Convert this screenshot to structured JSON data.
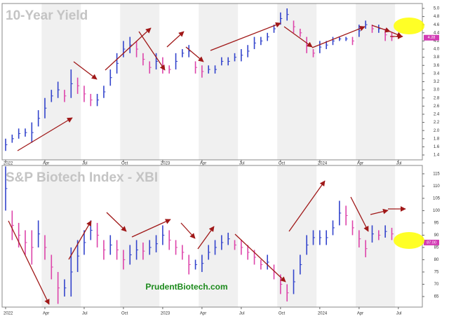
{
  "chart_data": [
    {
      "type": "range-bar",
      "title": "10-Year Yield",
      "categories": [
        "2022",
        null,
        null,
        null,
        null,
        null,
        "Apr",
        null,
        null,
        null,
        null,
        null,
        "Jul",
        null,
        null,
        null,
        null,
        null,
        "Oct",
        null,
        null,
        null,
        null,
        null,
        "2023",
        null,
        null,
        null,
        null,
        null,
        "Apr",
        null,
        null,
        null,
        null,
        null,
        "Jul",
        null,
        null,
        null,
        null,
        null,
        "Oct",
        null,
        null,
        null,
        null,
        null,
        "2024",
        null,
        null,
        null,
        null,
        null,
        "Apr",
        null,
        null,
        null,
        null,
        null,
        "Jul",
        null
      ],
      "high": [
        1.8,
        1.9,
        2.05,
        2.05,
        2.2,
        2.5,
        2.8,
        3.0,
        3.2,
        3.0,
        3.5,
        3.3,
        3.1,
        2.9,
        2.9,
        3.1,
        3.5,
        3.9,
        4.2,
        4.3,
        4.2,
        3.9,
        3.7,
        3.9,
        3.8,
        3.6,
        3.9,
        4.0,
        4.1,
        3.7,
        3.6,
        3.6,
        3.6,
        3.8,
        3.8,
        3.9,
        4.0,
        4.1,
        4.3,
        4.3,
        4.4,
        4.6,
        4.9,
        5.0,
        4.7,
        4.5,
        4.3,
        4.0,
        4.2,
        4.2,
        4.3,
        4.3,
        4.3,
        4.3,
        4.6,
        4.7,
        4.6,
        4.6,
        4.5,
        4.4,
        null,
        null
      ],
      "low": [
        1.5,
        1.7,
        1.8,
        1.85,
        1.7,
        2.1,
        2.3,
        2.7,
        2.8,
        2.7,
        2.8,
        2.9,
        2.7,
        2.6,
        2.6,
        2.8,
        3.1,
        3.4,
        3.8,
        3.9,
        3.8,
        3.6,
        3.4,
        3.5,
        3.4,
        3.4,
        3.5,
        3.8,
        3.8,
        3.4,
        3.3,
        3.4,
        3.4,
        3.6,
        3.6,
        3.7,
        3.7,
        3.8,
        4.0,
        4.1,
        4.2,
        4.4,
        4.6,
        4.7,
        4.4,
        4.3,
        3.9,
        3.8,
        3.9,
        4.0,
        4.1,
        4.2,
        4.2,
        4.1,
        4.3,
        4.5,
        4.4,
        4.4,
        4.2,
        4.2,
        null,
        null
      ],
      "up_color": "#3344cc",
      "down_color": "#dd44aa",
      "ylim": [
        1.28,
        5.12
      ],
      "yticks": [
        1.4,
        1.6,
        1.8,
        {
          "value": 2,
          "label": "2.0"
        },
        2.2,
        2.4,
        2.6,
        2.8,
        {
          "value": 3,
          "label": "3.0"
        },
        3.2,
        3.4,
        3.6,
        3.8,
        {
          "value": 4,
          "label": "4.0"
        },
        4.2,
        4.4,
        4.6,
        4.8,
        {
          "value": 5,
          "label": "5.0"
        }
      ],
      "last_value": {
        "value": 4.28,
        "label": "4.28"
      }
    },
    {
      "type": "range-bar",
      "title": "S&P Biotech Index - XBI",
      "categories": [
        "2022",
        null,
        null,
        null,
        null,
        null,
        "Apr",
        null,
        null,
        null,
        null,
        null,
        "Jul",
        null,
        null,
        null,
        null,
        null,
        "Oct",
        null,
        null,
        null,
        null,
        null,
        "2023",
        null,
        null,
        null,
        null,
        null,
        "Apr",
        null,
        null,
        null,
        null,
        null,
        "Jul",
        null,
        null,
        null,
        null,
        null,
        "Oct",
        null,
        null,
        null,
        null,
        null,
        "2024",
        null,
        null,
        null,
        null,
        null,
        "Apr",
        null,
        null,
        null,
        null,
        null,
        "Jul",
        null
      ],
      "high": [
        118,
        100,
        95,
        92,
        92,
        96,
        90,
        82,
        75,
        72,
        85,
        88,
        92,
        96,
        95,
        88,
        90,
        88,
        84,
        86,
        88,
        87,
        88,
        90,
        94,
        92,
        88,
        86,
        82,
        80,
        82,
        86,
        88,
        90,
        91,
        88,
        88,
        86,
        84,
        80,
        82,
        78,
        74,
        70,
        76,
        82,
        90,
        92,
        92,
        92,
        96,
        104,
        102,
        96,
        92,
        88,
        94,
        92,
        94,
        93,
        null,
        null
      ],
      "low": [
        100,
        88,
        85,
        82,
        78,
        85,
        80,
        72,
        62,
        65,
        65,
        75,
        82,
        88,
        85,
        80,
        82,
        80,
        76,
        78,
        80,
        80,
        82,
        83,
        86,
        84,
        82,
        80,
        74,
        76,
        75,
        80,
        82,
        84,
        86,
        84,
        82,
        80,
        78,
        76,
        76,
        72,
        66,
        63,
        66,
        74,
        82,
        86,
        86,
        86,
        90,
        94,
        94,
        90,
        85,
        81,
        87,
        88,
        89,
        88,
        null,
        null
      ],
      "up_color": "#3344cc",
      "down_color": "#dd44aa",
      "ylim": [
        60.7,
        118.4
      ],
      "yticks": [
        65,
        70,
        75,
        80,
        85,
        90,
        95,
        100,
        105,
        110,
        115
      ],
      "last_value": {
        "value": 87,
        "label": "87.00"
      },
      "watermark": "PrudentBiotech.com"
    }
  ]
}
